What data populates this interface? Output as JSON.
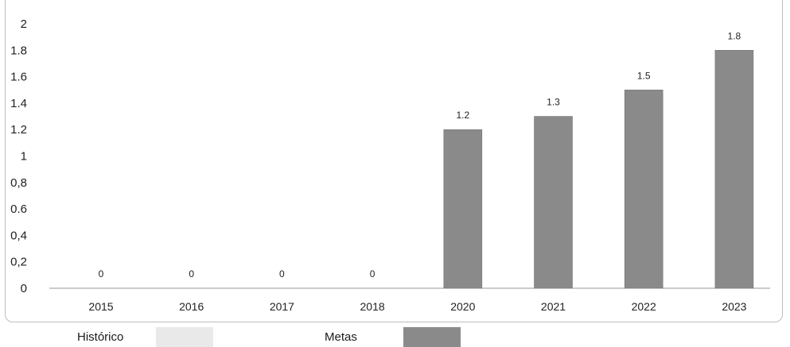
{
  "chart_data": {
    "type": "bar",
    "title": "",
    "xlabel": "",
    "ylabel": "",
    "categories": [
      "2015",
      "2016",
      "2017",
      "2018",
      "2020",
      "2021",
      "2022",
      "2023"
    ],
    "series": [
      {
        "name": "Histórico",
        "values": [
          0,
          0,
          0,
          0,
          null,
          null,
          null,
          null
        ],
        "color": "#e9e9e9"
      },
      {
        "name": "Metas",
        "values": [
          null,
          null,
          null,
          null,
          1.2,
          1.3,
          1.5,
          1.8
        ],
        "color": "#8a8a8a"
      }
    ],
    "data_labels": [
      "0",
      "0",
      "0",
      "0",
      "1.2",
      "1.3",
      "1.5",
      "1.8"
    ],
    "yticks": [
      "0",
      "0,2",
      "0,4",
      "0.6",
      "0,8",
      "1",
      "1.2",
      "1.4",
      "1.6",
      "1.8",
      "2"
    ],
    "ylim": [
      0,
      2
    ],
    "grid": false,
    "legend_position": "bottom-left"
  }
}
